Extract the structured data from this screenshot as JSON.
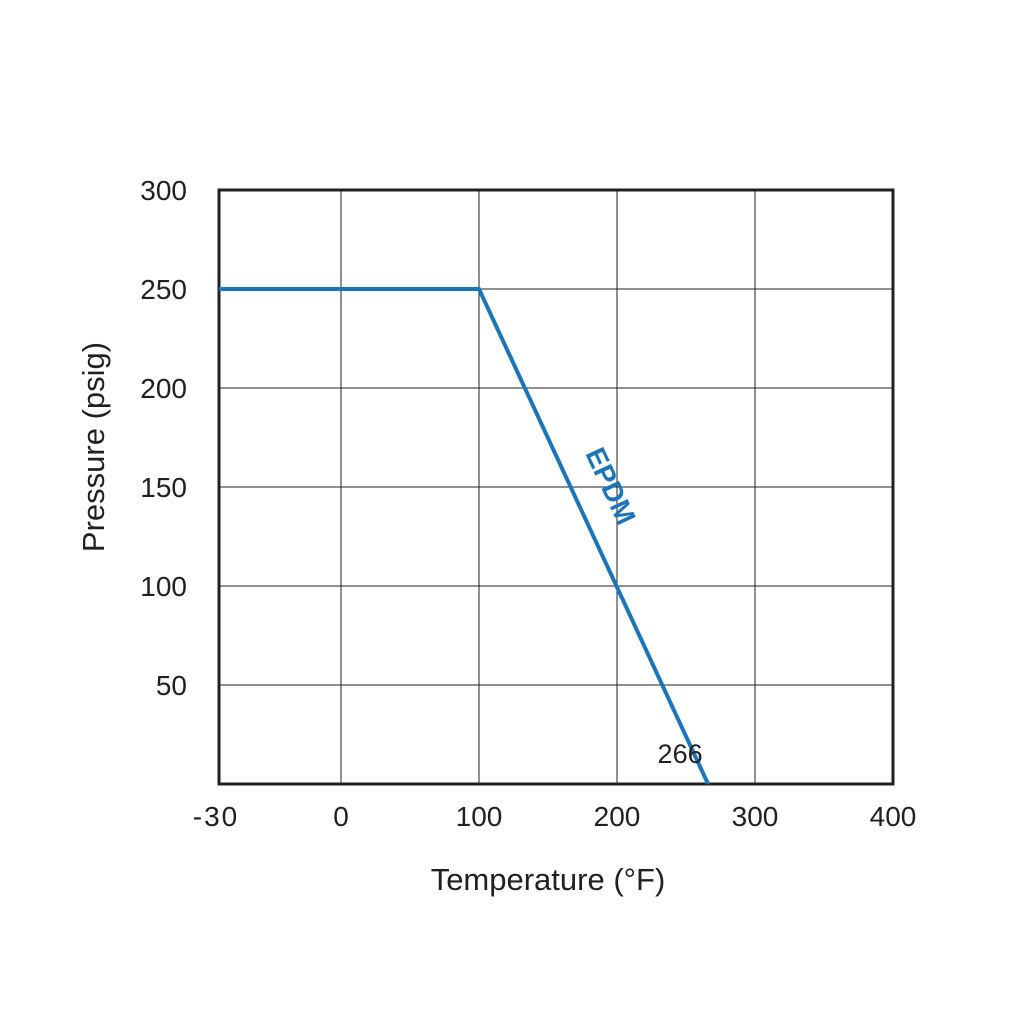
{
  "chart_data": {
    "type": "line",
    "title": "",
    "xlabel": "Temperature (°F)",
    "ylabel": "Pressure (psig)",
    "x_ticks": [
      {
        "value": -30,
        "label": "-30"
      },
      {
        "value": 0,
        "label": "0"
      },
      {
        "value": 100,
        "label": "100"
      },
      {
        "value": 200,
        "label": "200"
      },
      {
        "value": 300,
        "label": "300"
      },
      {
        "value": 400,
        "label": "400"
      }
    ],
    "y_ticks": [
      {
        "value": 50,
        "label": "50"
      },
      {
        "value": 100,
        "label": "100"
      },
      {
        "value": 150,
        "label": "150"
      },
      {
        "value": 200,
        "label": "200"
      },
      {
        "value": 250,
        "label": "250"
      },
      {
        "value": 300,
        "label": "300"
      }
    ],
    "ylim": [
      0,
      300
    ],
    "grid": true,
    "series": [
      {
        "name": "EPDM",
        "color": "#1b75bb",
        "points": [
          {
            "x": -30,
            "y": 250
          },
          {
            "x": 100,
            "y": 250
          },
          {
            "x": 266,
            "y": 0
          }
        ]
      }
    ],
    "annotations": [
      {
        "text": "266",
        "x": 266,
        "y": 0
      }
    ]
  }
}
